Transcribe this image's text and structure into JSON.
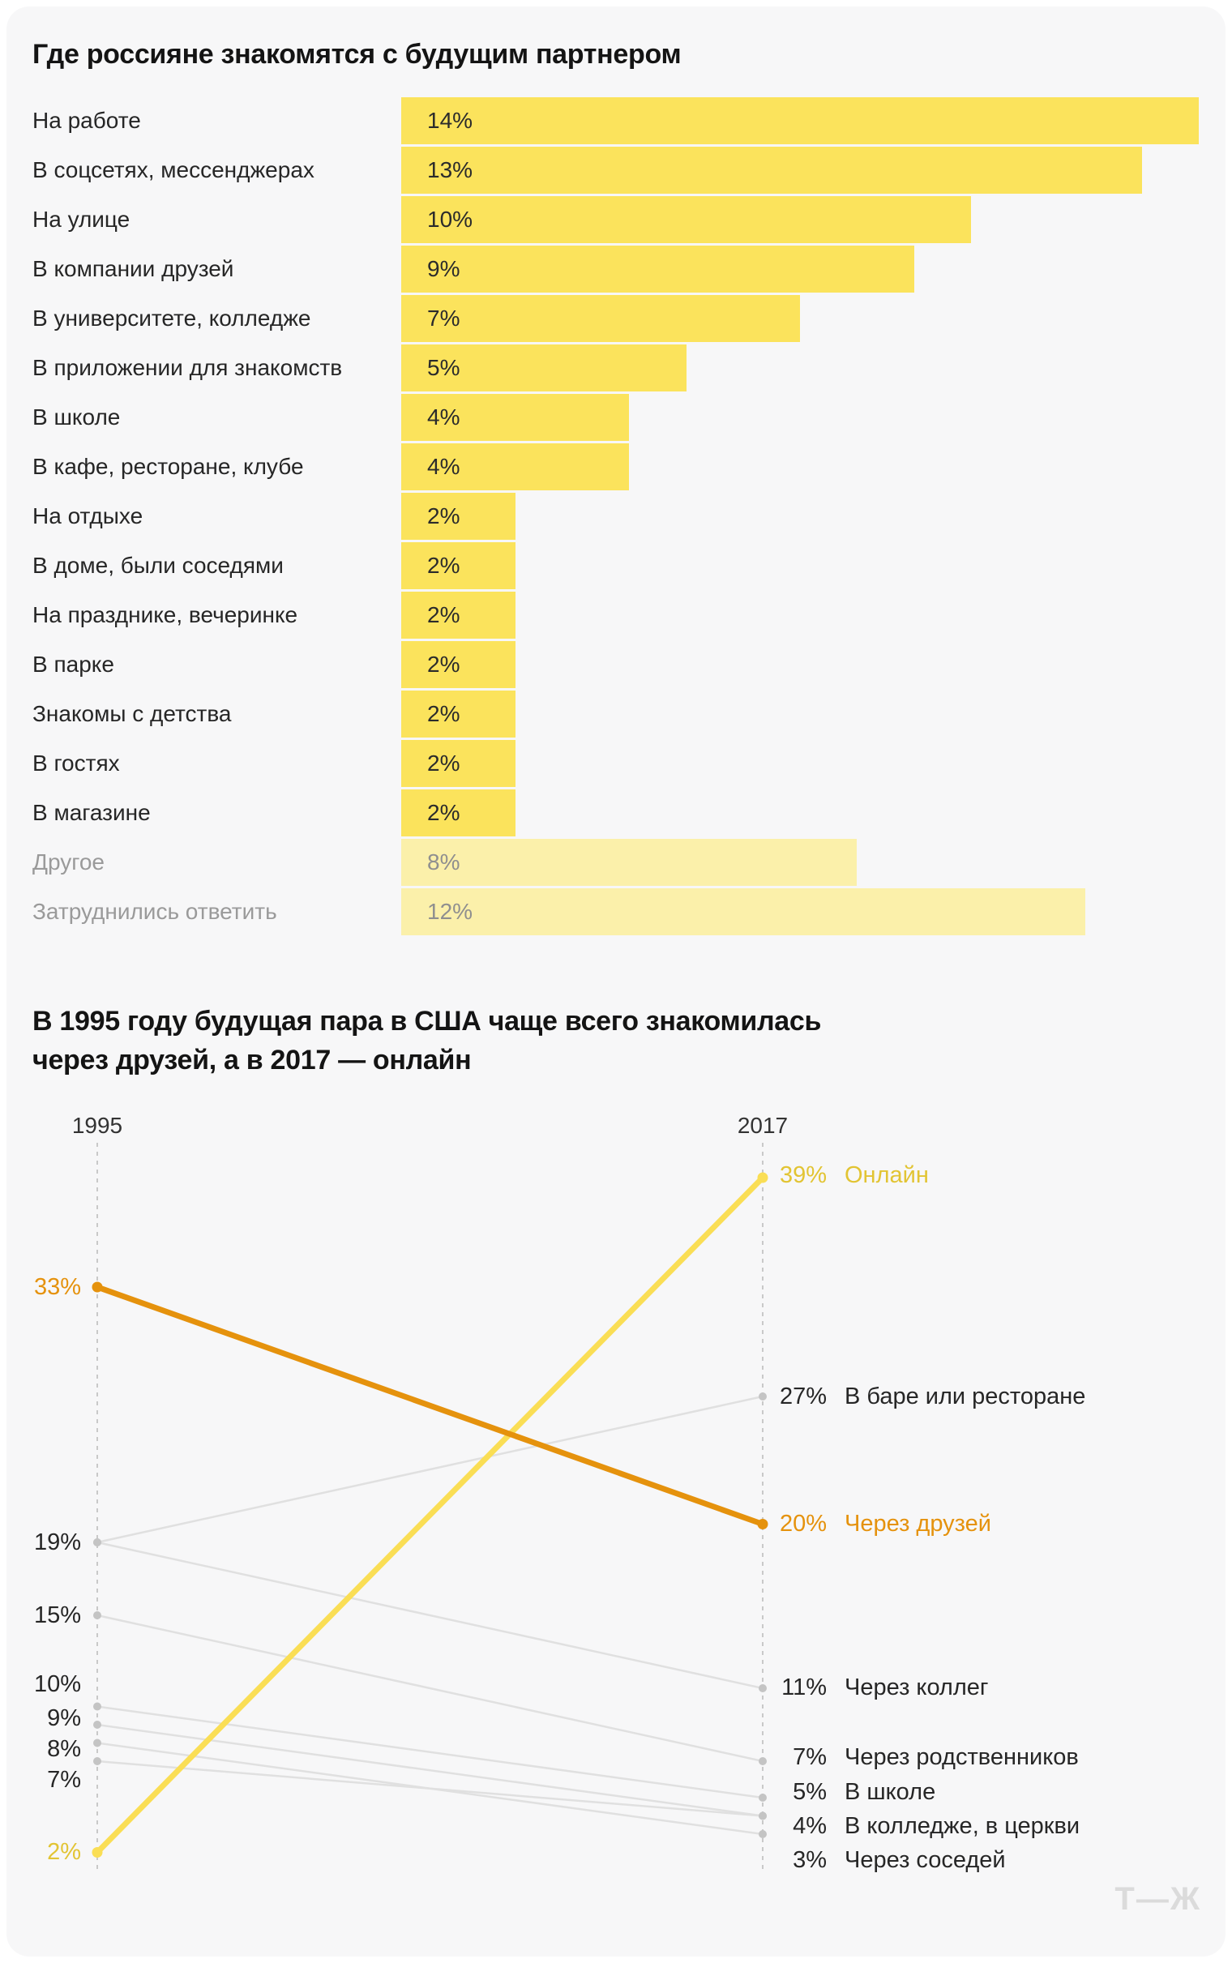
{
  "colors": {
    "bar_yellow": "#FBE35C",
    "bar_yellow_light": "#FBF0AA",
    "line_yellow": "#FADE55",
    "line_orange": "#E5920D",
    "text_yellow": "#E2C433",
    "text_orange": "#E5920D",
    "gray_line": "#E0E0E0",
    "gray_dot": "#C4C4C4",
    "axis_dash": "#C9C9C9",
    "label_dark": "#262626",
    "label_muted": "#9A9A9A",
    "value_muted": "#8F8F8F",
    "logo_gray": "#DBDBDB"
  },
  "footer": {
    "logo": "Т—Ж"
  },
  "chart_data": [
    {
      "type": "bar",
      "title": "Где россияне знакомятся с будущим партнером",
      "unit": "%",
      "categories": [
        "На работе",
        "В соцсетях, мессенджерах",
        "На улице",
        "В компании друзей",
        "В университете, колледже",
        "В приложении для знакомств",
        "В школе",
        "В кафе, ресторане, клубе",
        "На отдыхе",
        "В доме, были соседями",
        "На празднике, вечеринке",
        "В парке",
        "Знакомы с детства",
        "В гостях",
        "В магазине",
        "Другое",
        "Затруднились ответить"
      ],
      "values": [
        14,
        13,
        10,
        9,
        7,
        5,
        4,
        4,
        2,
        2,
        2,
        2,
        2,
        2,
        2,
        8,
        12
      ],
      "value_labels": [
        "14%",
        "13%",
        "10%",
        "9%",
        "7%",
        "5%",
        "4%",
        "4%",
        "2%",
        "2%",
        "2%",
        "2%",
        "2%",
        "2%",
        "2%",
        "8%",
        "12%"
      ],
      "muted": [
        false,
        false,
        false,
        false,
        false,
        false,
        false,
        false,
        false,
        false,
        false,
        false,
        false,
        false,
        false,
        true,
        true
      ],
      "xlim": [
        0,
        14
      ],
      "grid": false
    },
    {
      "type": "slope",
      "title_lines": [
        "В 1995 году будущая пара в США чаще всего знакомилась",
        "через друзей, а в 2017 — онлайн"
      ],
      "x": [
        "1995",
        "2017"
      ],
      "unit": "%",
      "series": [
        {
          "name": "Через друзей",
          "values": [
            33,
            20
          ],
          "color": "orange"
        },
        {
          "name": "В баре или ресторане",
          "values": [
            19,
            27
          ],
          "color": "gray"
        },
        {
          "name": "Через коллег",
          "values": [
            19,
            11
          ],
          "color": "gray"
        },
        {
          "name": "Через родственников",
          "values": [
            15,
            7
          ],
          "color": "gray"
        },
        {
          "name": "В школе",
          "values": [
            10,
            5
          ],
          "color": "gray"
        },
        {
          "name": "В колледже",
          "values": [
            9,
            4
          ],
          "color": "gray"
        },
        {
          "name": "В церкви",
          "values": [
            7,
            4
          ],
          "color": "gray"
        },
        {
          "name": "Через соседей",
          "values": [
            8,
            3
          ],
          "color": "gray"
        },
        {
          "name": "Онлайн",
          "values": [
            2,
            39
          ],
          "color": "yellow"
        }
      ],
      "left_axis_labels": [
        {
          "text": "33%",
          "color": "orange"
        },
        {
          "text": "19%",
          "color": "dark"
        },
        {
          "text": "15%",
          "color": "dark"
        },
        {
          "text": "10%",
          "color": "dark"
        },
        {
          "text": "9%",
          "color": "dark"
        },
        {
          "text": "8%",
          "color": "dark"
        },
        {
          "text": "7%",
          "color": "dark"
        },
        {
          "text": "2%",
          "color": "yellow"
        }
      ],
      "right_axis_labels": [
        {
          "value_label": "39%",
          "text": "Онлайн",
          "color": "yellow"
        },
        {
          "value_label": "27%",
          "text": "В баре или ресторане",
          "color": "dark"
        },
        {
          "value_label": "20%",
          "text": "Через друзей",
          "color": "orange"
        },
        {
          "value_label": "11%",
          "text": "Через коллег",
          "color": "dark"
        },
        {
          "value_label": "7%",
          "text": "Через родственников",
          "color": "dark"
        },
        {
          "value_label": "5%",
          "text": "В школе",
          "color": "dark"
        },
        {
          "value_label": "4%",
          "text": "В колледже, в церкви",
          "color": "dark"
        },
        {
          "value_label": "3%",
          "text": "Через соседей",
          "color": "dark"
        }
      ]
    }
  ]
}
